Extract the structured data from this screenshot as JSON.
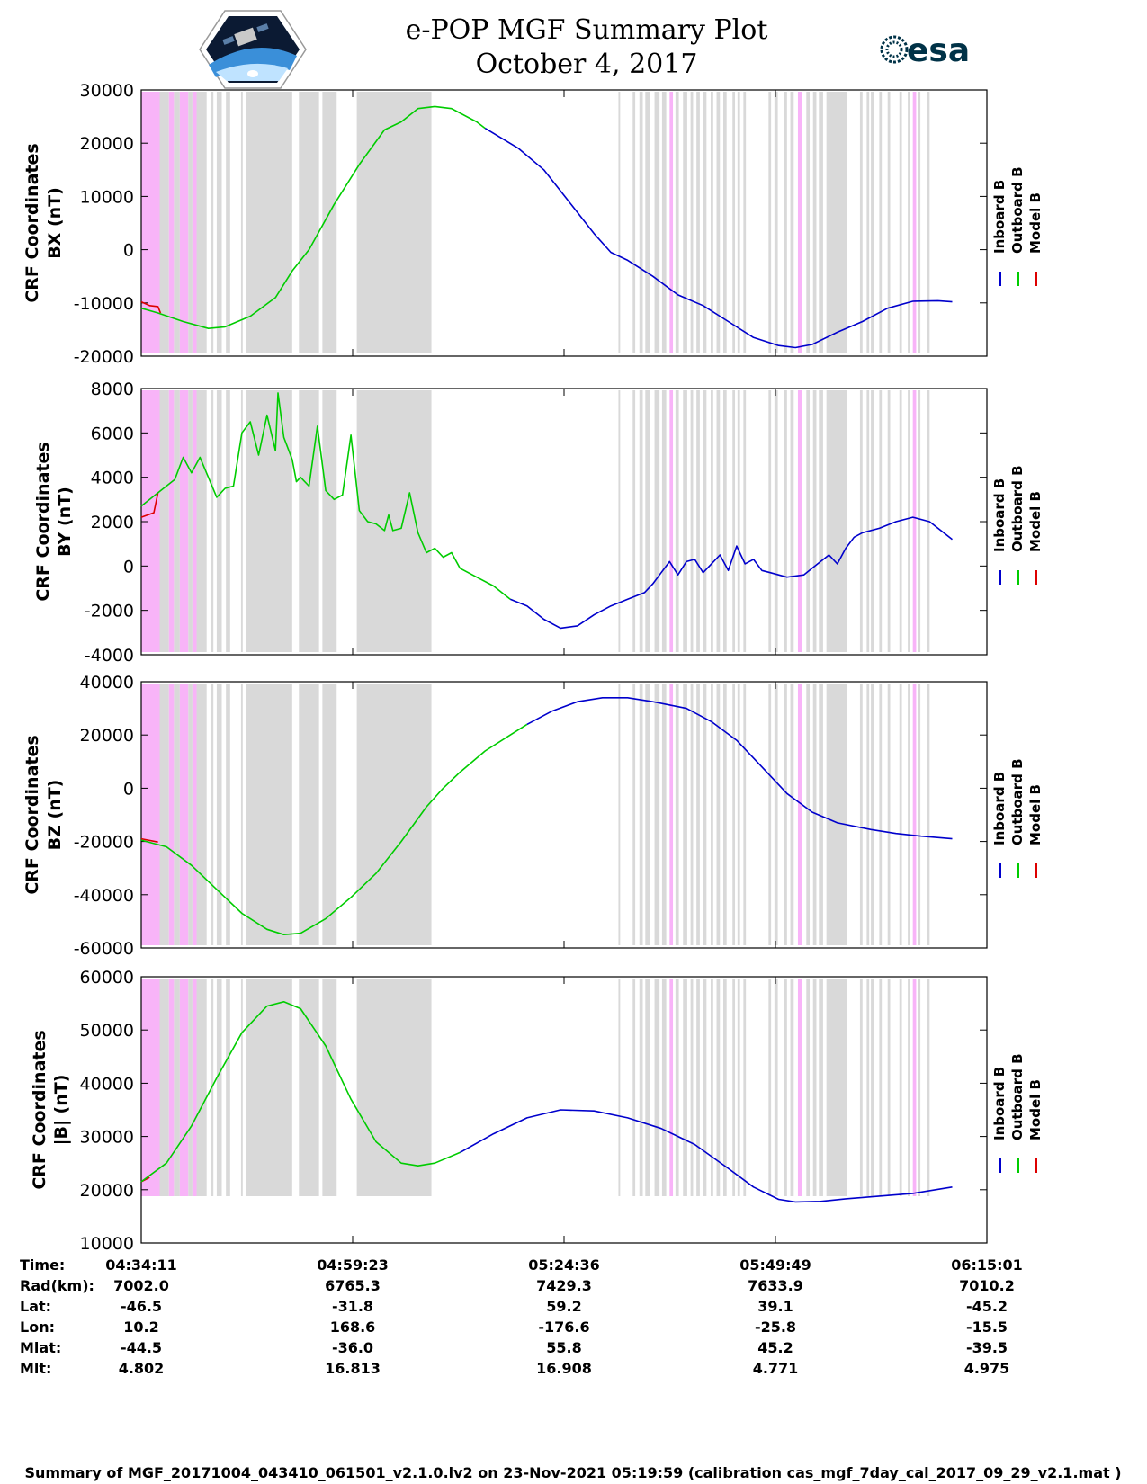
{
  "title_line1": "e-POP MGF Summary Plot",
  "title_line2": "October 4, 2017",
  "logos": {
    "left": "cassiope-mission-logo",
    "right_text": "esa",
    "right_brand": "#003247"
  },
  "colors": {
    "inboard": "#0000cc",
    "outboard": "#00cc00",
    "model": "#dd0000",
    "gray_band": "#d9d9d9",
    "pink_band": "#f8b4f8"
  },
  "legend": {
    "inboard": "Inboard B",
    "outboard": "Outboard B",
    "model": "Model B"
  },
  "chart_data": [
    {
      "type": "line",
      "ylabel_line1": "CRF Coordinates",
      "ylabel_line2": "BX (nT)",
      "ylim": [
        -20000,
        30000
      ],
      "yticks": [
        -20000,
        -10000,
        0,
        10000,
        20000,
        30000
      ],
      "ytick_labels": [
        "-20000",
        "-10000",
        "0",
        "10000",
        "20000",
        "30000"
      ],
      "x_range_min": [
        0,
        100.83
      ],
      "outboard": [
        [
          0,
          -11000
        ],
        [
          2,
          -11900
        ],
        [
          5,
          -13500
        ],
        [
          8,
          -14800
        ],
        [
          10,
          -14500
        ],
        [
          13,
          -12500
        ],
        [
          16,
          -9000
        ],
        [
          18,
          -4000
        ],
        [
          20,
          0
        ],
        [
          23,
          8500
        ],
        [
          26,
          16000
        ],
        [
          29,
          22500
        ],
        [
          31,
          24000
        ],
        [
          33,
          26500
        ],
        [
          35,
          26900
        ],
        [
          37,
          26500
        ],
        [
          40,
          24000
        ],
        [
          41,
          22800
        ]
      ],
      "inboard": [
        [
          41,
          22800
        ],
        [
          45,
          19000
        ],
        [
          48,
          15000
        ],
        [
          51,
          9000
        ],
        [
          54,
          3000
        ],
        [
          56,
          -500
        ],
        [
          58,
          -2000
        ],
        [
          61,
          -5000
        ],
        [
          64,
          -8500
        ],
        [
          67,
          -10500
        ],
        [
          70,
          -13500
        ],
        [
          73,
          -16500
        ],
        [
          76,
          -18000
        ],
        [
          78,
          -18400
        ],
        [
          80,
          -17800
        ],
        [
          83,
          -15500
        ],
        [
          86,
          -13500
        ],
        [
          89,
          -11000
        ],
        [
          92,
          -9700
        ],
        [
          95,
          -9600
        ],
        [
          96.7,
          -9800
        ]
      ],
      "model": [
        [
          0,
          -9800
        ],
        [
          1,
          -10500
        ],
        [
          2,
          -10700
        ],
        [
          2.3,
          -11900
        ]
      ]
    },
    {
      "type": "line",
      "ylabel_line1": "CRF Coordinates",
      "ylabel_line2": "BY (nT)",
      "ylim": [
        -4000,
        8000
      ],
      "yticks": [
        -4000,
        -2000,
        0,
        2000,
        4000,
        6000,
        8000
      ],
      "ytick_labels": [
        "-4000",
        "-2000",
        "0",
        "2000",
        "4000",
        "6000",
        "8000"
      ],
      "x_range_min": [
        0,
        100.83
      ],
      "outboard": [
        [
          0,
          2700
        ],
        [
          2,
          3300
        ],
        [
          4,
          3900
        ],
        [
          5,
          4900
        ],
        [
          6,
          4200
        ],
        [
          7,
          4900
        ],
        [
          8,
          4000
        ],
        [
          9,
          3100
        ],
        [
          10,
          3500
        ],
        [
          11,
          3600
        ],
        [
          12,
          6000
        ],
        [
          13,
          6500
        ],
        [
          14,
          5000
        ],
        [
          15,
          6800
        ],
        [
          16,
          5200
        ],
        [
          16.3,
          7800
        ],
        [
          17,
          5800
        ],
        [
          18,
          4800
        ],
        [
          18.5,
          3800
        ],
        [
          19,
          4000
        ],
        [
          20,
          3600
        ],
        [
          21,
          6300
        ],
        [
          22,
          3400
        ],
        [
          23,
          3000
        ],
        [
          24,
          3200
        ],
        [
          25,
          5900
        ],
        [
          26,
          2500
        ],
        [
          27,
          2000
        ],
        [
          28,
          1900
        ],
        [
          29,
          1600
        ],
        [
          29.5,
          2300
        ],
        [
          30,
          1600
        ],
        [
          31,
          1700
        ],
        [
          32,
          3300
        ],
        [
          33,
          1500
        ],
        [
          34,
          600
        ],
        [
          35,
          800
        ],
        [
          36,
          400
        ],
        [
          37,
          600
        ],
        [
          38,
          -100
        ],
        [
          40,
          -500
        ],
        [
          42,
          -900
        ],
        [
          44,
          -1500
        ]
      ],
      "inboard": [
        [
          44,
          -1500
        ],
        [
          46,
          -1800
        ],
        [
          48,
          -2400
        ],
        [
          50,
          -2800
        ],
        [
          52,
          -2700
        ],
        [
          54,
          -2200
        ],
        [
          56,
          -1800
        ],
        [
          58,
          -1500
        ],
        [
          60,
          -1200
        ],
        [
          61,
          -800
        ],
        [
          62,
          -300
        ],
        [
          63,
          200
        ],
        [
          64,
          -400
        ],
        [
          65,
          200
        ],
        [
          66,
          300
        ],
        [
          67,
          -300
        ],
        [
          68,
          100
        ],
        [
          69,
          500
        ],
        [
          70,
          -200
        ],
        [
          71,
          900
        ],
        [
          72,
          100
        ],
        [
          73,
          300
        ],
        [
          74,
          -200
        ],
        [
          75,
          -300
        ],
        [
          77,
          -500
        ],
        [
          79,
          -400
        ],
        [
          80,
          -100
        ],
        [
          81,
          200
        ],
        [
          82,
          500
        ],
        [
          83,
          100
        ],
        [
          84,
          800
        ],
        [
          85,
          1300
        ],
        [
          86,
          1500
        ],
        [
          88,
          1700
        ],
        [
          90,
          2000
        ],
        [
          92,
          2200
        ],
        [
          94,
          2000
        ],
        [
          96.7,
          1200
        ]
      ],
      "model": [
        [
          0,
          2200
        ],
        [
          1.5,
          2400
        ],
        [
          2,
          3300
        ]
      ]
    },
    {
      "type": "line",
      "ylabel_line1": "CRF Coordinates",
      "ylabel_line2": "BZ (nT)",
      "ylim": [
        -60000,
        40000
      ],
      "yticks": [
        -60000,
        -40000,
        -20000,
        0,
        20000,
        40000
      ],
      "ytick_labels": [
        "-60000",
        "-40000",
        "-20000",
        "0",
        "20000",
        "40000"
      ],
      "x_range_min": [
        0,
        100.83
      ],
      "outboard": [
        [
          0,
          -19500
        ],
        [
          3,
          -22000
        ],
        [
          6,
          -29000
        ],
        [
          9,
          -38000
        ],
        [
          12,
          -47000
        ],
        [
          15,
          -53000
        ],
        [
          17,
          -55000
        ],
        [
          19,
          -54500
        ],
        [
          22,
          -49000
        ],
        [
          25,
          -41000
        ],
        [
          28,
          -32000
        ],
        [
          31,
          -20000
        ],
        [
          34,
          -7000
        ],
        [
          36,
          0
        ],
        [
          38,
          6000
        ],
        [
          41,
          14000
        ],
        [
          44,
          20000
        ],
        [
          46,
          24000
        ]
      ],
      "inboard": [
        [
          46,
          24000
        ],
        [
          49,
          29000
        ],
        [
          52,
          32500
        ],
        [
          55,
          34000
        ],
        [
          58,
          34000
        ],
        [
          61,
          32500
        ],
        [
          65,
          30000
        ],
        [
          68,
          25000
        ],
        [
          71,
          18000
        ],
        [
          74,
          8000
        ],
        [
          77,
          -2000
        ],
        [
          80,
          -9000
        ],
        [
          83,
          -13000
        ],
        [
          87,
          -15500
        ],
        [
          90,
          -17000
        ],
        [
          93,
          -18000
        ],
        [
          96.7,
          -19000
        ]
      ],
      "model": [
        [
          0,
          -19000
        ],
        [
          2,
          -20200
        ]
      ]
    },
    {
      "type": "line",
      "ylabel_line1": "CRF Coordinates",
      "ylabel_line2": "|B| (nT)",
      "ylim": [
        10000,
        60000
      ],
      "yticks": [
        10000,
        20000,
        30000,
        40000,
        50000,
        60000
      ],
      "ytick_labels": [
        "10000",
        "20000",
        "30000",
        "40000",
        "50000",
        "60000"
      ],
      "x_range_min": [
        0,
        100.83
      ],
      "outboard": [
        [
          0,
          21500
        ],
        [
          3,
          25000
        ],
        [
          6,
          32000
        ],
        [
          9,
          41000
        ],
        [
          12,
          49500
        ],
        [
          15,
          54500
        ],
        [
          17,
          55300
        ],
        [
          19,
          54000
        ],
        [
          22,
          47000
        ],
        [
          25,
          37000
        ],
        [
          28,
          29000
        ],
        [
          31,
          25000
        ],
        [
          33,
          24500
        ],
        [
          35,
          25000
        ],
        [
          38,
          27000
        ]
      ],
      "inboard": [
        [
          38,
          27000
        ],
        [
          42,
          30500
        ],
        [
          46,
          33500
        ],
        [
          50,
          35000
        ],
        [
          54,
          34800
        ],
        [
          58,
          33500
        ],
        [
          62,
          31500
        ],
        [
          66,
          28500
        ],
        [
          70,
          24000
        ],
        [
          73,
          20500
        ],
        [
          76,
          18200
        ],
        [
          78,
          17700
        ],
        [
          81,
          17800
        ],
        [
          84,
          18300
        ],
        [
          88,
          18800
        ],
        [
          92,
          19300
        ],
        [
          96.7,
          20500
        ]
      ],
      "model": [
        [
          0,
          21500
        ],
        [
          1,
          22300
        ]
      ]
    }
  ],
  "bands": {
    "pink": [
      [
        0,
        2.2
      ],
      [
        3.3,
        3.9
      ],
      [
        4.6,
        5.6
      ],
      [
        6.1,
        6.6
      ],
      [
        63.0,
        63.4
      ],
      [
        78.3,
        78.8
      ],
      [
        92.0,
        92.4
      ]
    ],
    "gray": [
      [
        2.2,
        3.3
      ],
      [
        3.9,
        4.6
      ],
      [
        5.6,
        6.1
      ],
      [
        6.6,
        7.8
      ],
      [
        8.3,
        8.6
      ],
      [
        9.0,
        9.6
      ],
      [
        10.1,
        10.6
      ],
      [
        11.9,
        12.1
      ],
      [
        12.5,
        18.0
      ],
      [
        18.8,
        21.2
      ],
      [
        21.6,
        23.3
      ],
      [
        25.7,
        34.6
      ],
      [
        56.9,
        57.1
      ],
      [
        58.6,
        58.9
      ],
      [
        59.4,
        59.8
      ],
      [
        60.1,
        60.7
      ],
      [
        61.2,
        61.8
      ],
      [
        62.1,
        62.6
      ],
      [
        63.7,
        64.1
      ],
      [
        64.6,
        65.1
      ],
      [
        65.5,
        65.8
      ],
      [
        66.2,
        66.6
      ],
      [
        67.0,
        67.4
      ],
      [
        67.9,
        68.2
      ],
      [
        68.6,
        69.0
      ],
      [
        69.4,
        69.8
      ],
      [
        70.5,
        70.8
      ],
      [
        71.1,
        71.4
      ],
      [
        71.8,
        72.1
      ],
      [
        74.8,
        75.1
      ],
      [
        75.5,
        75.9
      ],
      [
        76.6,
        77.0
      ],
      [
        77.4,
        77.8
      ],
      [
        79.3,
        79.7
      ],
      [
        80.1,
        80.5
      ],
      [
        80.8,
        81.3
      ],
      [
        81.7,
        84.2
      ],
      [
        85.7,
        86.0
      ],
      [
        86.5,
        86.8
      ],
      [
        87.0,
        87.4
      ],
      [
        88.0,
        88.3
      ],
      [
        89.0,
        89.3
      ],
      [
        90.4,
        90.7
      ],
      [
        91.4,
        91.7
      ],
      [
        92.6,
        92.9
      ],
      [
        93.7,
        94.0
      ]
    ]
  },
  "time_axis": {
    "label": "Time:",
    "values": [
      "04:34:11",
      "04:59:23",
      "05:24:36",
      "05:49:49",
      "06:15:01"
    ]
  },
  "info_rows": [
    {
      "label": "Rad(km):",
      "values": [
        "7002.0",
        "6765.3",
        "7429.3",
        "7633.9",
        "7010.2"
      ]
    },
    {
      "label": "Lat:",
      "values": [
        "-46.5",
        "-31.8",
        "59.2",
        "39.1",
        "-45.2"
      ]
    },
    {
      "label": "Lon:",
      "values": [
        "10.2",
        "168.6",
        "-176.6",
        "-25.8",
        "-15.5"
      ]
    },
    {
      "label": "Mlat:",
      "values": [
        "-44.5",
        "-36.0",
        "55.8",
        "45.2",
        "-39.5"
      ]
    },
    {
      "label": "Mlt:",
      "values": [
        "4.802",
        "16.813",
        "16.908",
        "4.771",
        "4.975"
      ]
    }
  ],
  "footer": "Summary of MGF_20171004_043410_061501_v2.1.0.lv2 on 23-Nov-2021 05:19:59 (calibration cas_mgf_7day_cal_2017_09_29_v2.1.mat )"
}
